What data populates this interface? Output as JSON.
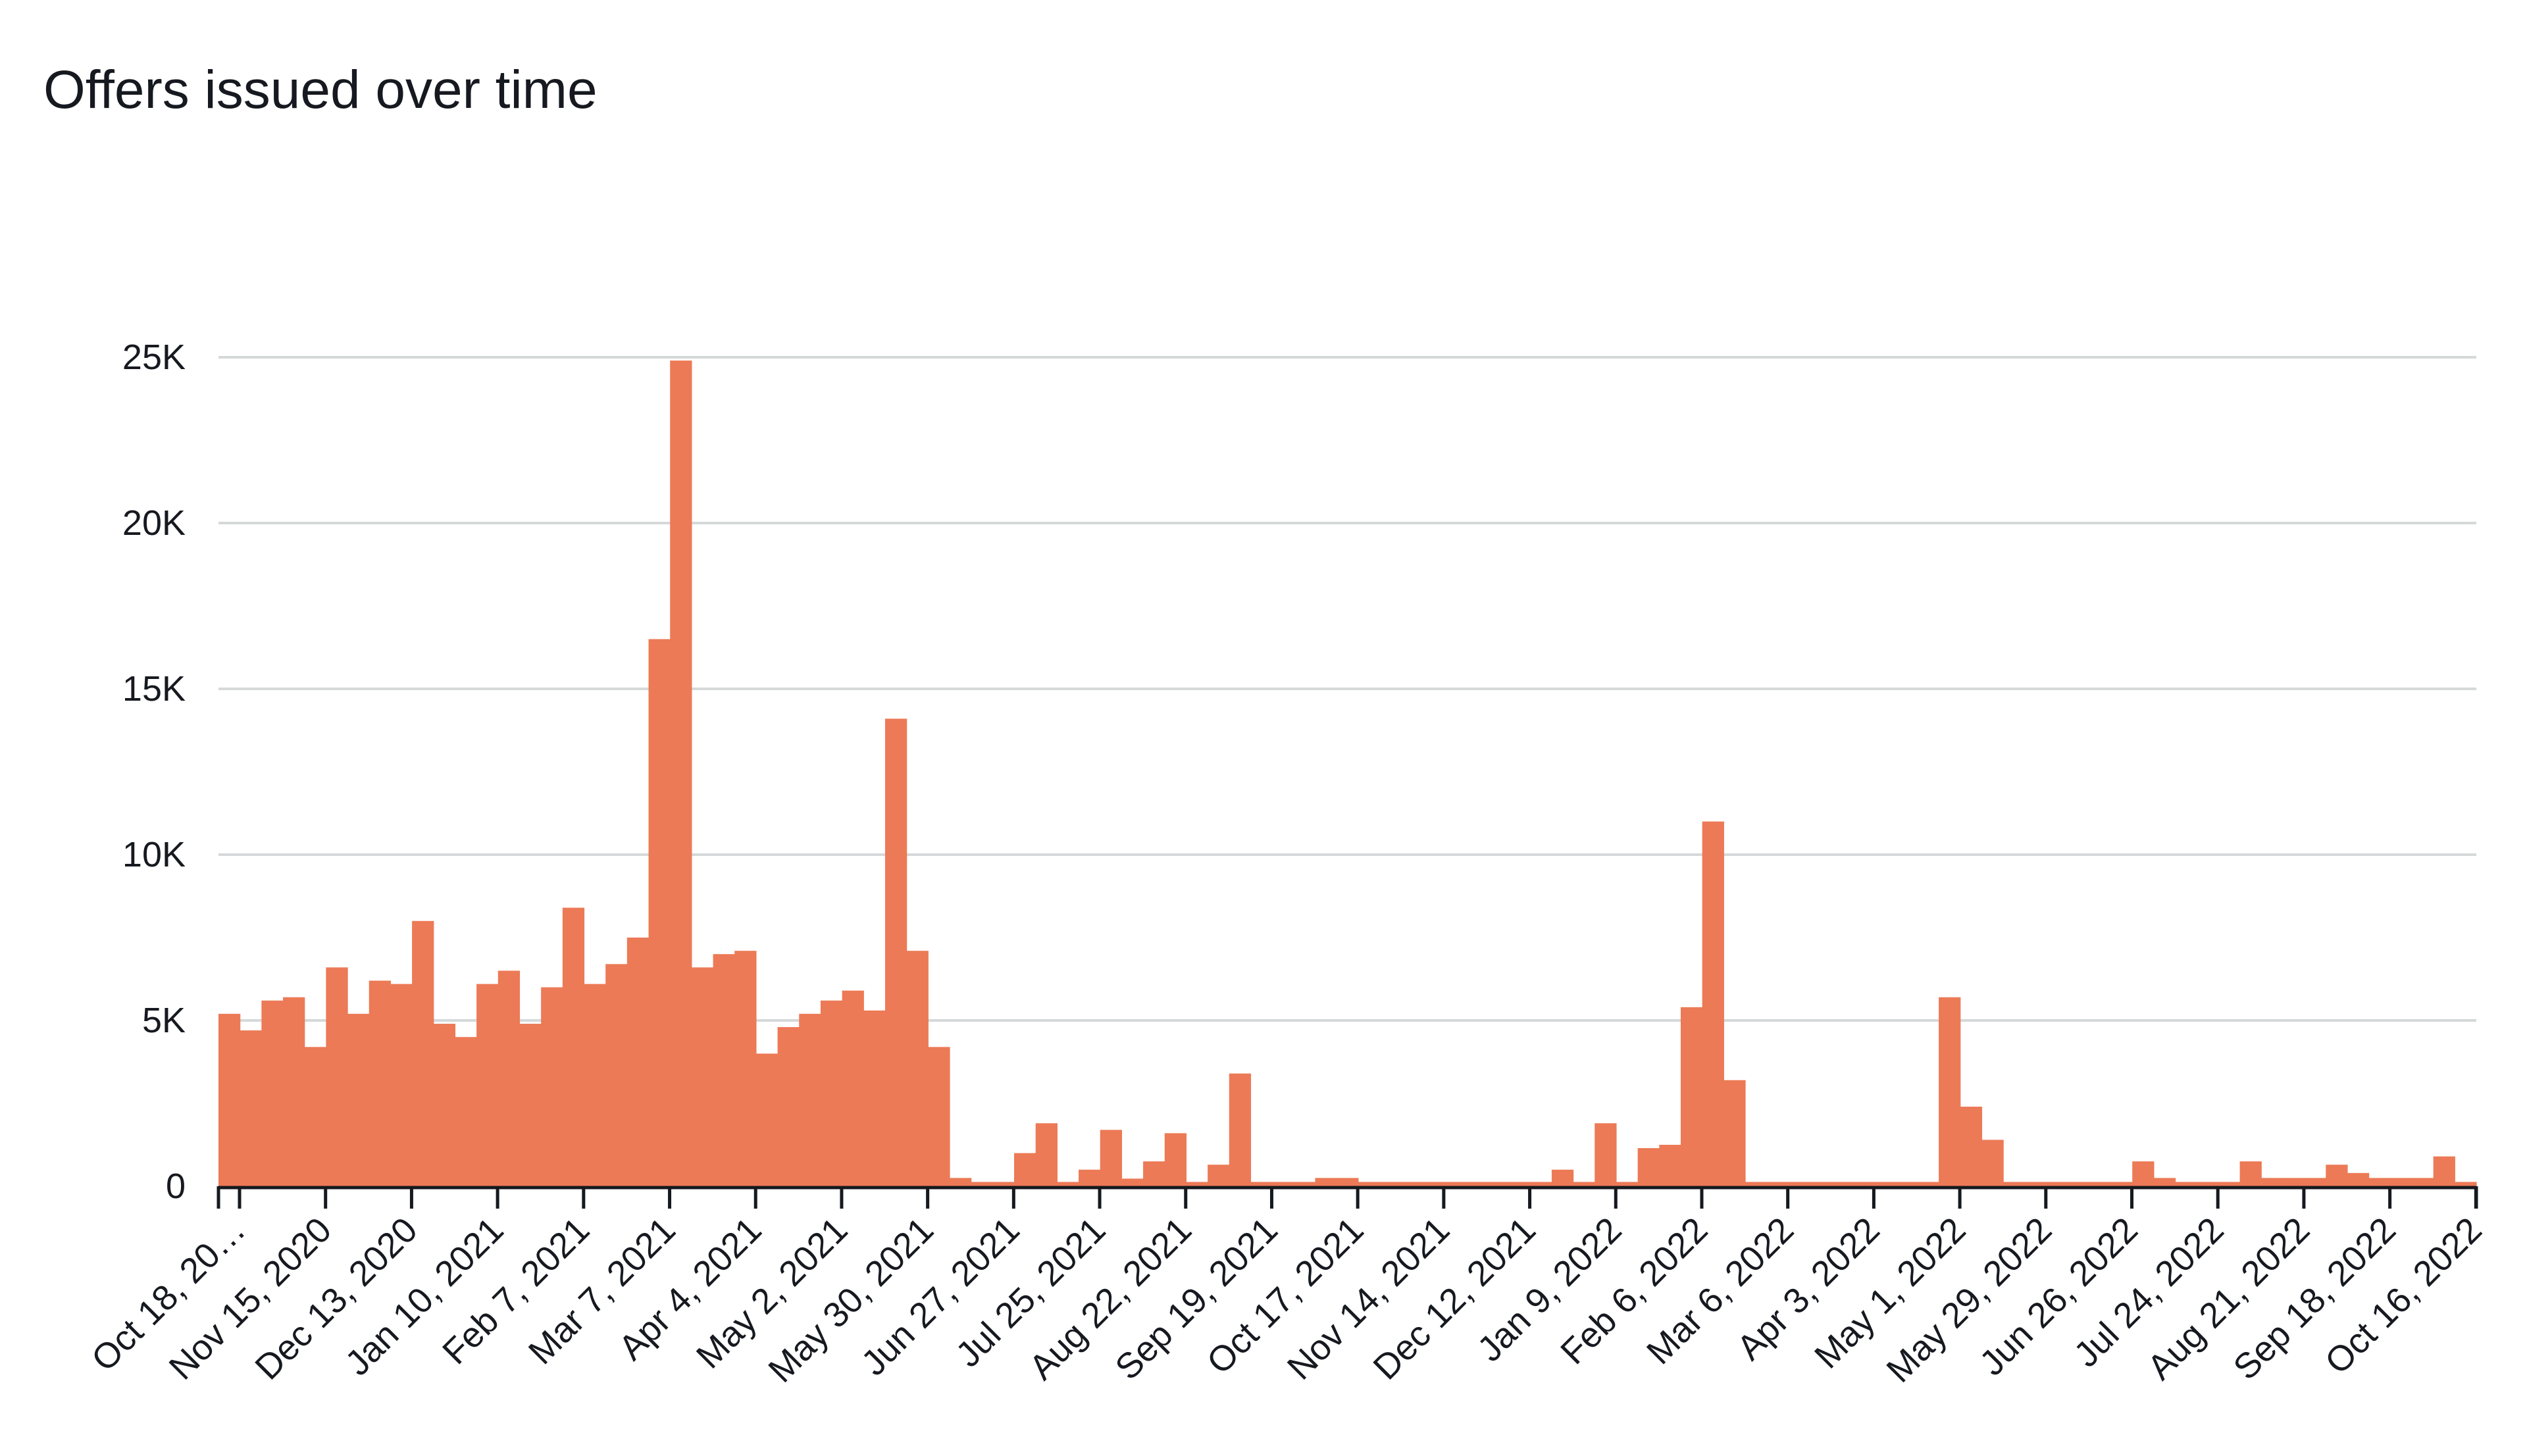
{
  "chart_data": {
    "type": "bar",
    "title": "Offers issued over time",
    "xlabel": "",
    "ylabel": "",
    "ylim": [
      0,
      25000
    ],
    "yticks": [
      {
        "value": 0,
        "label": "0"
      },
      {
        "value": 5000,
        "label": "5K"
      },
      {
        "value": 10000,
        "label": "10K"
      },
      {
        "value": 15000,
        "label": "15K"
      },
      {
        "value": 20000,
        "label": "20K"
      },
      {
        "value": 25000,
        "label": "25K"
      }
    ],
    "grid": true,
    "legend": "none",
    "bar_color": "#ec7a56",
    "grid_color": "#d5d9d9",
    "axis_color": "#16191f",
    "x_start": "2020-10-18",
    "x_end": "2022-10-23",
    "xtick_labels": [
      {
        "date": "2020-10-18",
        "label": "Oct 18, 20…"
      },
      {
        "date": "2020-11-15",
        "label": "Nov 15, 2020"
      },
      {
        "date": "2020-12-13",
        "label": "Dec 13, 2020"
      },
      {
        "date": "2021-01-10",
        "label": "Jan 10, 2021"
      },
      {
        "date": "2021-02-07",
        "label": "Feb 7, 2021"
      },
      {
        "date": "2021-03-07",
        "label": "Mar 7, 2021"
      },
      {
        "date": "2021-04-04",
        "label": "Apr 4, 2021"
      },
      {
        "date": "2021-05-02",
        "label": "May 2, 2021"
      },
      {
        "date": "2021-05-30",
        "label": "May 30, 2021"
      },
      {
        "date": "2021-06-27",
        "label": "Jun 27, 2021"
      },
      {
        "date": "2021-07-25",
        "label": "Jul 25, 2021"
      },
      {
        "date": "2021-08-22",
        "label": "Aug 22, 2021"
      },
      {
        "date": "2021-09-19",
        "label": "Sep 19, 2021"
      },
      {
        "date": "2021-10-17",
        "label": "Oct 17, 2021"
      },
      {
        "date": "2021-11-14",
        "label": "Nov 14, 2021"
      },
      {
        "date": "2021-12-12",
        "label": "Dec 12, 2021"
      },
      {
        "date": "2022-01-09",
        "label": "Jan 9, 2022"
      },
      {
        "date": "2022-02-06",
        "label": "Feb 6, 2022"
      },
      {
        "date": "2022-03-06",
        "label": "Mar 6, 2022"
      },
      {
        "date": "2022-04-03",
        "label": "Apr 3, 2022"
      },
      {
        "date": "2022-05-01",
        "label": "May 1, 2022"
      },
      {
        "date": "2022-05-29",
        "label": "May 29, 2022"
      },
      {
        "date": "2022-06-26",
        "label": "Jun 26, 2022"
      },
      {
        "date": "2022-07-24",
        "label": "Jul 24, 2022"
      },
      {
        "date": "2022-08-21",
        "label": "Aug 21, 2022"
      },
      {
        "date": "2022-09-18",
        "label": "Sep 18, 2022"
      },
      {
        "date": "2022-10-16",
        "label": "Oct 16, 2022"
      }
    ],
    "bars": [
      {
        "week": "2020-10-18",
        "value": 5200
      },
      {
        "week": "2020-10-25",
        "value": 4700
      },
      {
        "week": "2020-11-01",
        "value": 5600
      },
      {
        "week": "2020-11-08",
        "value": 5700
      },
      {
        "week": "2020-11-15",
        "value": 4200
      },
      {
        "week": "2020-11-22",
        "value": 6600
      },
      {
        "week": "2020-11-29",
        "value": 5200
      },
      {
        "week": "2020-12-06",
        "value": 6200
      },
      {
        "week": "2020-12-13",
        "value": 6100
      },
      {
        "week": "2020-12-20",
        "value": 8000
      },
      {
        "week": "2020-12-27",
        "value": 4900
      },
      {
        "week": "2021-01-03",
        "value": 4500
      },
      {
        "week": "2021-01-10",
        "value": 6100
      },
      {
        "week": "2021-01-17",
        "value": 6500
      },
      {
        "week": "2021-01-24",
        "value": 4900
      },
      {
        "week": "2021-01-31",
        "value": 6000
      },
      {
        "week": "2021-02-07",
        "value": 8400
      },
      {
        "week": "2021-02-14",
        "value": 6100
      },
      {
        "week": "2021-02-21",
        "value": 6700
      },
      {
        "week": "2021-02-28",
        "value": 7500
      },
      {
        "week": "2021-03-07",
        "value": 16500
      },
      {
        "week": "2021-03-14",
        "value": 24900
      },
      {
        "week": "2021-03-21",
        "value": 6600
      },
      {
        "week": "2021-03-28",
        "value": 7000
      },
      {
        "week": "2021-04-04",
        "value": 7100
      },
      {
        "week": "2021-04-11",
        "value": 4000
      },
      {
        "week": "2021-04-18",
        "value": 4800
      },
      {
        "week": "2021-04-25",
        "value": 5200
      },
      {
        "week": "2021-05-02",
        "value": 5600
      },
      {
        "week": "2021-05-09",
        "value": 5900
      },
      {
        "week": "2021-05-16",
        "value": 5300
      },
      {
        "week": "2021-05-23",
        "value": 14100
      },
      {
        "week": "2021-05-30",
        "value": 7100
      },
      {
        "week": "2021-06-06",
        "value": 4200
      },
      {
        "week": "2021-06-13",
        "value": 250
      },
      {
        "week": "2021-06-20",
        "value": 130
      },
      {
        "week": "2021-06-27",
        "value": 130
      },
      {
        "week": "2021-07-04",
        "value": 1000
      },
      {
        "week": "2021-07-11",
        "value": 1900
      },
      {
        "week": "2021-07-18",
        "value": 130
      },
      {
        "week": "2021-07-25",
        "value": 500
      },
      {
        "week": "2021-08-01",
        "value": 1700
      },
      {
        "week": "2021-08-08",
        "value": 230
      },
      {
        "week": "2021-08-15",
        "value": 750
      },
      {
        "week": "2021-08-22",
        "value": 1600
      },
      {
        "week": "2021-08-29",
        "value": 130
      },
      {
        "week": "2021-09-05",
        "value": 650
      },
      {
        "week": "2021-09-12",
        "value": 3400
      },
      {
        "week": "2021-09-19",
        "value": 130
      },
      {
        "week": "2021-09-26",
        "value": 130
      },
      {
        "week": "2021-10-03",
        "value": 130
      },
      {
        "week": "2021-10-10",
        "value": 250
      },
      {
        "week": "2021-10-17",
        "value": 250
      },
      {
        "week": "2021-10-24",
        "value": 130
      },
      {
        "week": "2021-10-31",
        "value": 130
      },
      {
        "week": "2021-11-07",
        "value": 130
      },
      {
        "week": "2021-11-14",
        "value": 130
      },
      {
        "week": "2021-11-21",
        "value": 130
      },
      {
        "week": "2021-11-28",
        "value": 130
      },
      {
        "week": "2021-12-05",
        "value": 130
      },
      {
        "week": "2021-12-12",
        "value": 130
      },
      {
        "week": "2021-12-19",
        "value": 130
      },
      {
        "week": "2021-12-26",
        "value": 500
      },
      {
        "week": "2022-01-02",
        "value": 130
      },
      {
        "week": "2022-01-09",
        "value": 1900
      },
      {
        "week": "2022-01-16",
        "value": 130
      },
      {
        "week": "2022-01-23",
        "value": 1150
      },
      {
        "week": "2022-01-30",
        "value": 1250
      },
      {
        "week": "2022-02-06",
        "value": 5400
      },
      {
        "week": "2022-02-13",
        "value": 11000
      },
      {
        "week": "2022-02-20",
        "value": 3200
      },
      {
        "week": "2022-02-27",
        "value": 130
      },
      {
        "week": "2022-03-06",
        "value": 130
      },
      {
        "week": "2022-03-13",
        "value": 130
      },
      {
        "week": "2022-03-20",
        "value": 130
      },
      {
        "week": "2022-03-27",
        "value": 130
      },
      {
        "week": "2022-04-03",
        "value": 130
      },
      {
        "week": "2022-04-10",
        "value": 130
      },
      {
        "week": "2022-04-17",
        "value": 130
      },
      {
        "week": "2022-04-24",
        "value": 130
      },
      {
        "week": "2022-05-01",
        "value": 5700
      },
      {
        "week": "2022-05-08",
        "value": 2400
      },
      {
        "week": "2022-05-15",
        "value": 1400
      },
      {
        "week": "2022-05-22",
        "value": 130
      },
      {
        "week": "2022-05-29",
        "value": 130
      },
      {
        "week": "2022-06-05",
        "value": 130
      },
      {
        "week": "2022-06-12",
        "value": 130
      },
      {
        "week": "2022-06-19",
        "value": 130
      },
      {
        "week": "2022-06-26",
        "value": 130
      },
      {
        "week": "2022-07-03",
        "value": 750
      },
      {
        "week": "2022-07-10",
        "value": 250
      },
      {
        "week": "2022-07-17",
        "value": 130
      },
      {
        "week": "2022-07-24",
        "value": 130
      },
      {
        "week": "2022-07-31",
        "value": 130
      },
      {
        "week": "2022-08-07",
        "value": 750
      },
      {
        "week": "2022-08-14",
        "value": 250
      },
      {
        "week": "2022-08-21",
        "value": 250
      },
      {
        "week": "2022-08-28",
        "value": 250
      },
      {
        "week": "2022-09-04",
        "value": 650
      },
      {
        "week": "2022-09-11",
        "value": 400
      },
      {
        "week": "2022-09-18",
        "value": 250
      },
      {
        "week": "2022-09-25",
        "value": 250
      },
      {
        "week": "2022-10-02",
        "value": 250
      },
      {
        "week": "2022-10-09",
        "value": 900
      },
      {
        "week": "2022-10-16",
        "value": 130
      }
    ]
  }
}
